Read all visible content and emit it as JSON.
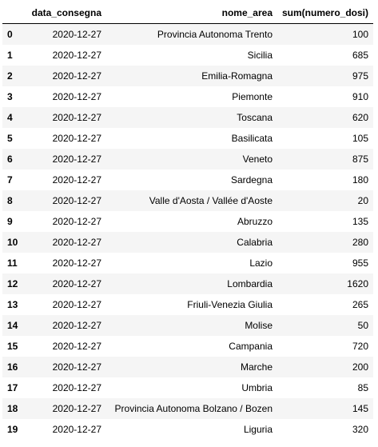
{
  "table": {
    "columns": [
      "",
      "data_consegna",
      "nome_area",
      "sum(numero_dosi)"
    ],
    "rows": [
      {
        "index": "0",
        "data_consegna": "2020-12-27",
        "nome_area": "Provincia Autonoma Trento",
        "sum": "100"
      },
      {
        "index": "1",
        "data_consegna": "2020-12-27",
        "nome_area": "Sicilia",
        "sum": "685"
      },
      {
        "index": "2",
        "data_consegna": "2020-12-27",
        "nome_area": "Emilia-Romagna",
        "sum": "975"
      },
      {
        "index": "3",
        "data_consegna": "2020-12-27",
        "nome_area": "Piemonte",
        "sum": "910"
      },
      {
        "index": "4",
        "data_consegna": "2020-12-27",
        "nome_area": "Toscana",
        "sum": "620"
      },
      {
        "index": "5",
        "data_consegna": "2020-12-27",
        "nome_area": "Basilicata",
        "sum": "105"
      },
      {
        "index": "6",
        "data_consegna": "2020-12-27",
        "nome_area": "Veneto",
        "sum": "875"
      },
      {
        "index": "7",
        "data_consegna": "2020-12-27",
        "nome_area": "Sardegna",
        "sum": "180"
      },
      {
        "index": "8",
        "data_consegna": "2020-12-27",
        "nome_area": "Valle d'Aosta / Vallée d'Aoste",
        "sum": "20"
      },
      {
        "index": "9",
        "data_consegna": "2020-12-27",
        "nome_area": "Abruzzo",
        "sum": "135"
      },
      {
        "index": "10",
        "data_consegna": "2020-12-27",
        "nome_area": "Calabria",
        "sum": "280"
      },
      {
        "index": "11",
        "data_consegna": "2020-12-27",
        "nome_area": "Lazio",
        "sum": "955"
      },
      {
        "index": "12",
        "data_consegna": "2020-12-27",
        "nome_area": "Lombardia",
        "sum": "1620"
      },
      {
        "index": "13",
        "data_consegna": "2020-12-27",
        "nome_area": "Friuli-Venezia Giulia",
        "sum": "265"
      },
      {
        "index": "14",
        "data_consegna": "2020-12-27",
        "nome_area": "Molise",
        "sum": "50"
      },
      {
        "index": "15",
        "data_consegna": "2020-12-27",
        "nome_area": "Campania",
        "sum": "720"
      },
      {
        "index": "16",
        "data_consegna": "2020-12-27",
        "nome_area": "Marche",
        "sum": "200"
      },
      {
        "index": "17",
        "data_consegna": "2020-12-27",
        "nome_area": "Umbria",
        "sum": "85"
      },
      {
        "index": "18",
        "data_consegna": "2020-12-27",
        "nome_area": "Provincia Autonoma Bolzano / Bozen",
        "sum": "145"
      },
      {
        "index": "19",
        "data_consegna": "2020-12-27",
        "nome_area": "Liguria",
        "sum": "320"
      }
    ]
  }
}
